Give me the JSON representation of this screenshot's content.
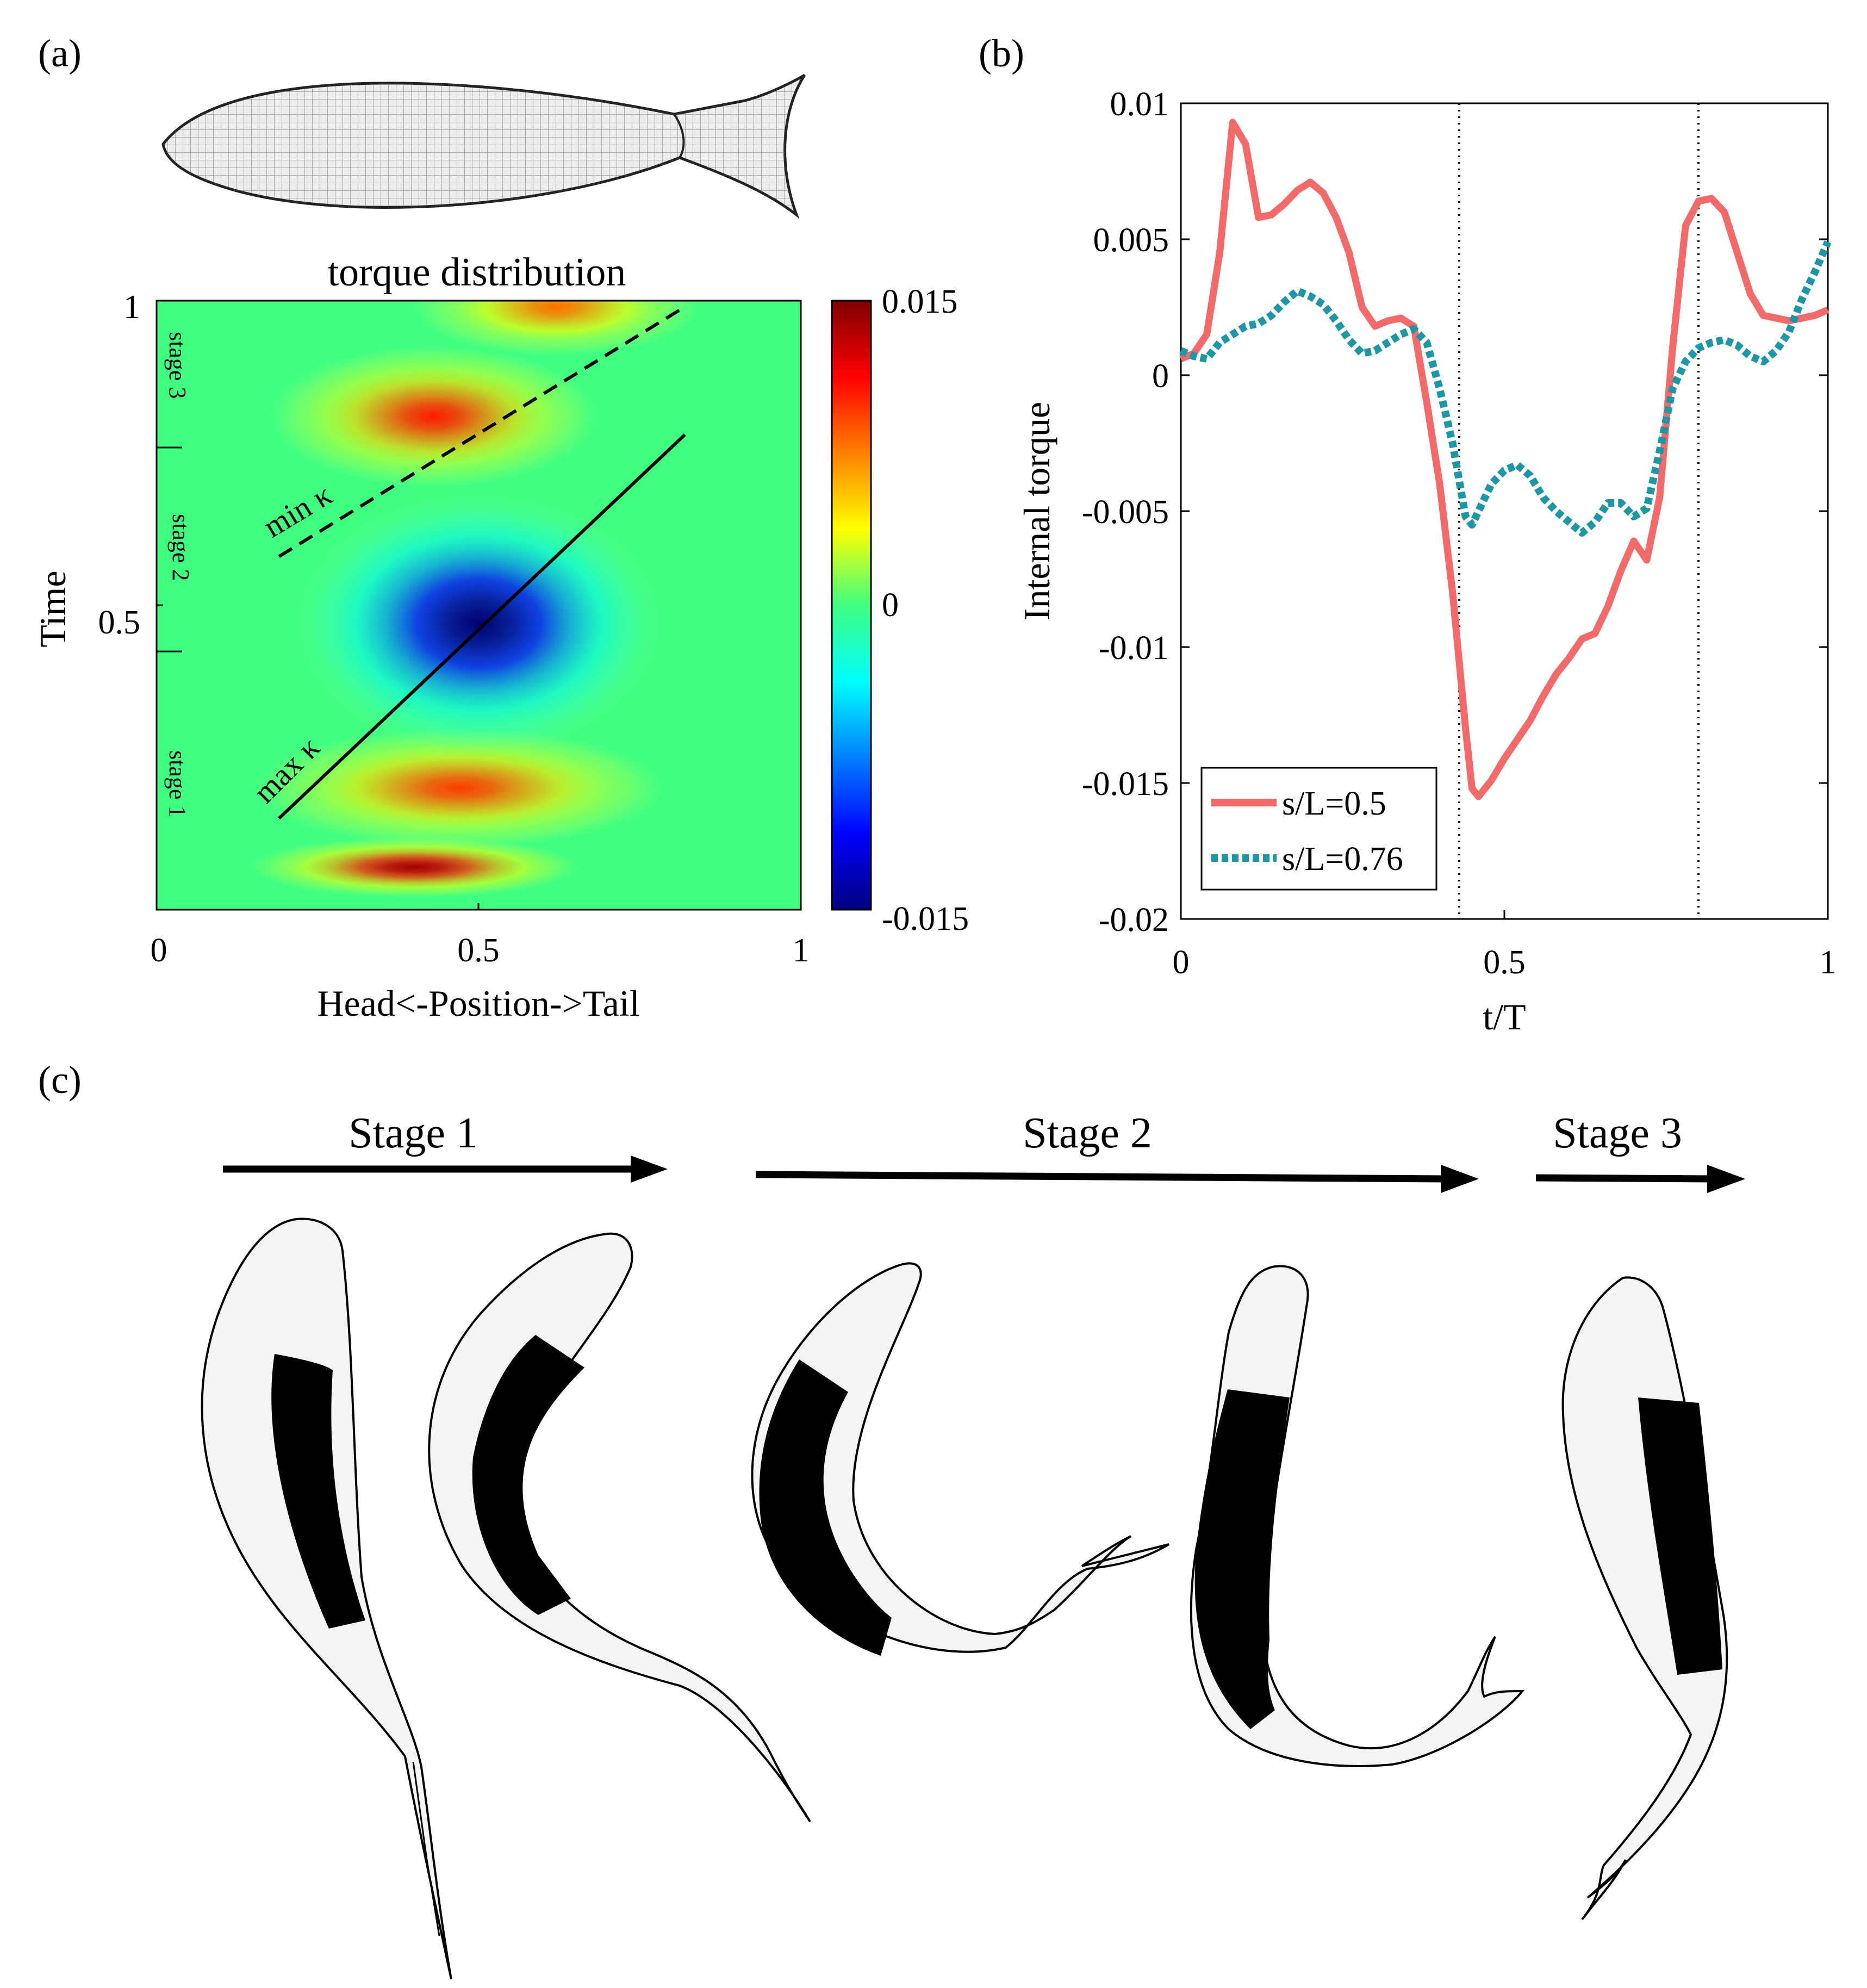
{
  "panels": {
    "a": {
      "label": "(a)",
      "heatmap_title": "torque distribution",
      "xlabel": "Head<-Position->Tail",
      "ylabel": "Time",
      "xticks": [
        "0",
        "0.5",
        "1"
      ],
      "yticks": [
        "0.5",
        "1"
      ],
      "colorbar_ticks": [
        "0.015",
        "0",
        "-0.015"
      ],
      "stage_labels": [
        "stage 3",
        "stage 2",
        "stage 1"
      ],
      "line_labels": {
        "min": "min κ",
        "max": "max κ"
      }
    },
    "b": {
      "label": "(b)",
      "xlabel": "t/T",
      "ylabel": "Internal torque",
      "yticks": [
        "0.01",
        "0.005",
        "0",
        "-0.005",
        "-0.01",
        "-0.015",
        "-0.02"
      ],
      "xticks": [
        "0",
        "0.5",
        "1"
      ]
    },
    "c": {
      "label": "(c)",
      "stages": [
        "Stage 1",
        "Stage 2",
        "Stage 3"
      ]
    }
  },
  "chart_data": [
    {
      "type": "heatmap",
      "title": "torque distribution",
      "xlabel": "Head<-Position->Tail",
      "ylabel": "Time",
      "xlim": [
        0,
        1
      ],
      "ylim": [
        0,
        1
      ],
      "clim": [
        -0.015,
        0.015
      ],
      "colormap": "jet",
      "blobs": [
        {
          "x": 0.4,
          "t": 0.07,
          "sx": 0.16,
          "st": 0.028,
          "value": 0.014
        },
        {
          "x": 0.47,
          "t": 0.2,
          "sx": 0.2,
          "st": 0.055,
          "value": 0.0095
        },
        {
          "x": 0.5,
          "t": 0.47,
          "sx": 0.18,
          "st": 0.12,
          "value": -0.0155
        },
        {
          "x": 0.43,
          "t": 0.81,
          "sx": 0.16,
          "st": 0.065,
          "value": 0.0105
        },
        {
          "x": 0.62,
          "t": 0.99,
          "sx": 0.14,
          "st": 0.045,
          "value": 0.008
        }
      ],
      "lines": [
        {
          "name": "max κ",
          "style": "solid",
          "x": [
            0.19,
            0.82
          ],
          "t": [
            0.15,
            0.78
          ]
        },
        {
          "name": "min κ",
          "style": "dashed",
          "x": [
            0.19,
            0.82
          ],
          "t": [
            0.58,
            0.99
          ]
        }
      ],
      "stage_boundaries_t": [
        0.5,
        0.76
      ]
    },
    {
      "type": "line",
      "xlabel": "t/T",
      "ylabel": "Internal torque",
      "xlim": [
        0,
        1
      ],
      "ylim": [
        -0.02,
        0.01
      ],
      "vlines": [
        0.43,
        0.8
      ],
      "legend": "bottom-left",
      "series": [
        {
          "name": "s/L=0.5",
          "color": "#f26a6a",
          "style": "solid",
          "x": [
            0,
            0.02,
            0.04,
            0.06,
            0.08,
            0.1,
            0.12,
            0.14,
            0.16,
            0.18,
            0.2,
            0.22,
            0.24,
            0.26,
            0.28,
            0.3,
            0.32,
            0.34,
            0.36,
            0.38,
            0.4,
            0.42,
            0.44,
            0.45,
            0.46,
            0.48,
            0.5,
            0.52,
            0.54,
            0.56,
            0.58,
            0.6,
            0.62,
            0.64,
            0.66,
            0.68,
            0.7,
            0.72,
            0.74,
            0.76,
            0.78,
            0.8,
            0.82,
            0.84,
            0.86,
            0.88,
            0.9,
            0.92,
            0.94,
            0.96,
            0.98,
            1.0
          ],
          "y": [
            0.0006,
            0.0008,
            0.0015,
            0.0045,
            0.0093,
            0.0085,
            0.0058,
            0.0059,
            0.0063,
            0.0068,
            0.0071,
            0.0067,
            0.0058,
            0.0045,
            0.0025,
            0.0018,
            0.002,
            0.0021,
            0.0018,
            -0.001,
            -0.004,
            -0.008,
            -0.013,
            -0.0152,
            -0.0155,
            -0.0149,
            -0.0141,
            -0.0134,
            -0.0127,
            -0.0118,
            -0.011,
            -0.0104,
            -0.0097,
            -0.0095,
            -0.0085,
            -0.0072,
            -0.0061,
            -0.0068,
            -0.0045,
            0.001,
            0.0055,
            0.0064,
            0.0065,
            0.006,
            0.0045,
            0.003,
            0.0022,
            0.0021,
            0.002,
            0.0021,
            0.0022,
            0.0024
          ]
        },
        {
          "name": "s/L=0.76",
          "color": "#1d97a5",
          "style": "dotted",
          "x": [
            0,
            0.02,
            0.04,
            0.06,
            0.08,
            0.1,
            0.12,
            0.14,
            0.16,
            0.18,
            0.2,
            0.22,
            0.24,
            0.26,
            0.28,
            0.3,
            0.32,
            0.34,
            0.36,
            0.38,
            0.4,
            0.42,
            0.44,
            0.45,
            0.46,
            0.48,
            0.5,
            0.52,
            0.54,
            0.56,
            0.58,
            0.6,
            0.62,
            0.64,
            0.66,
            0.68,
            0.7,
            0.72,
            0.74,
            0.76,
            0.78,
            0.8,
            0.82,
            0.84,
            0.86,
            0.88,
            0.9,
            0.92,
            0.94,
            0.96,
            0.98,
            1.0
          ],
          "y": [
            0.0009,
            0.0007,
            0.0006,
            0.0012,
            0.0015,
            0.0018,
            0.0019,
            0.0022,
            0.0027,
            0.0031,
            0.0029,
            0.0026,
            0.002,
            0.0013,
            0.0008,
            0.0009,
            0.0012,
            0.0015,
            0.0017,
            0.0012,
            -0.0005,
            -0.0025,
            -0.0052,
            -0.0055,
            -0.005,
            -0.004,
            -0.0035,
            -0.0033,
            -0.0037,
            -0.0045,
            -0.005,
            -0.0054,
            -0.0058,
            -0.0054,
            -0.0047,
            -0.0047,
            -0.0052,
            -0.0049,
            -0.0028,
            -0.0005,
            0.0005,
            0.001,
            0.0012,
            0.0013,
            0.0011,
            0.0007,
            0.0005,
            0.0009,
            0.0016,
            0.0028,
            0.0038,
            0.0049
          ]
        }
      ]
    }
  ]
}
